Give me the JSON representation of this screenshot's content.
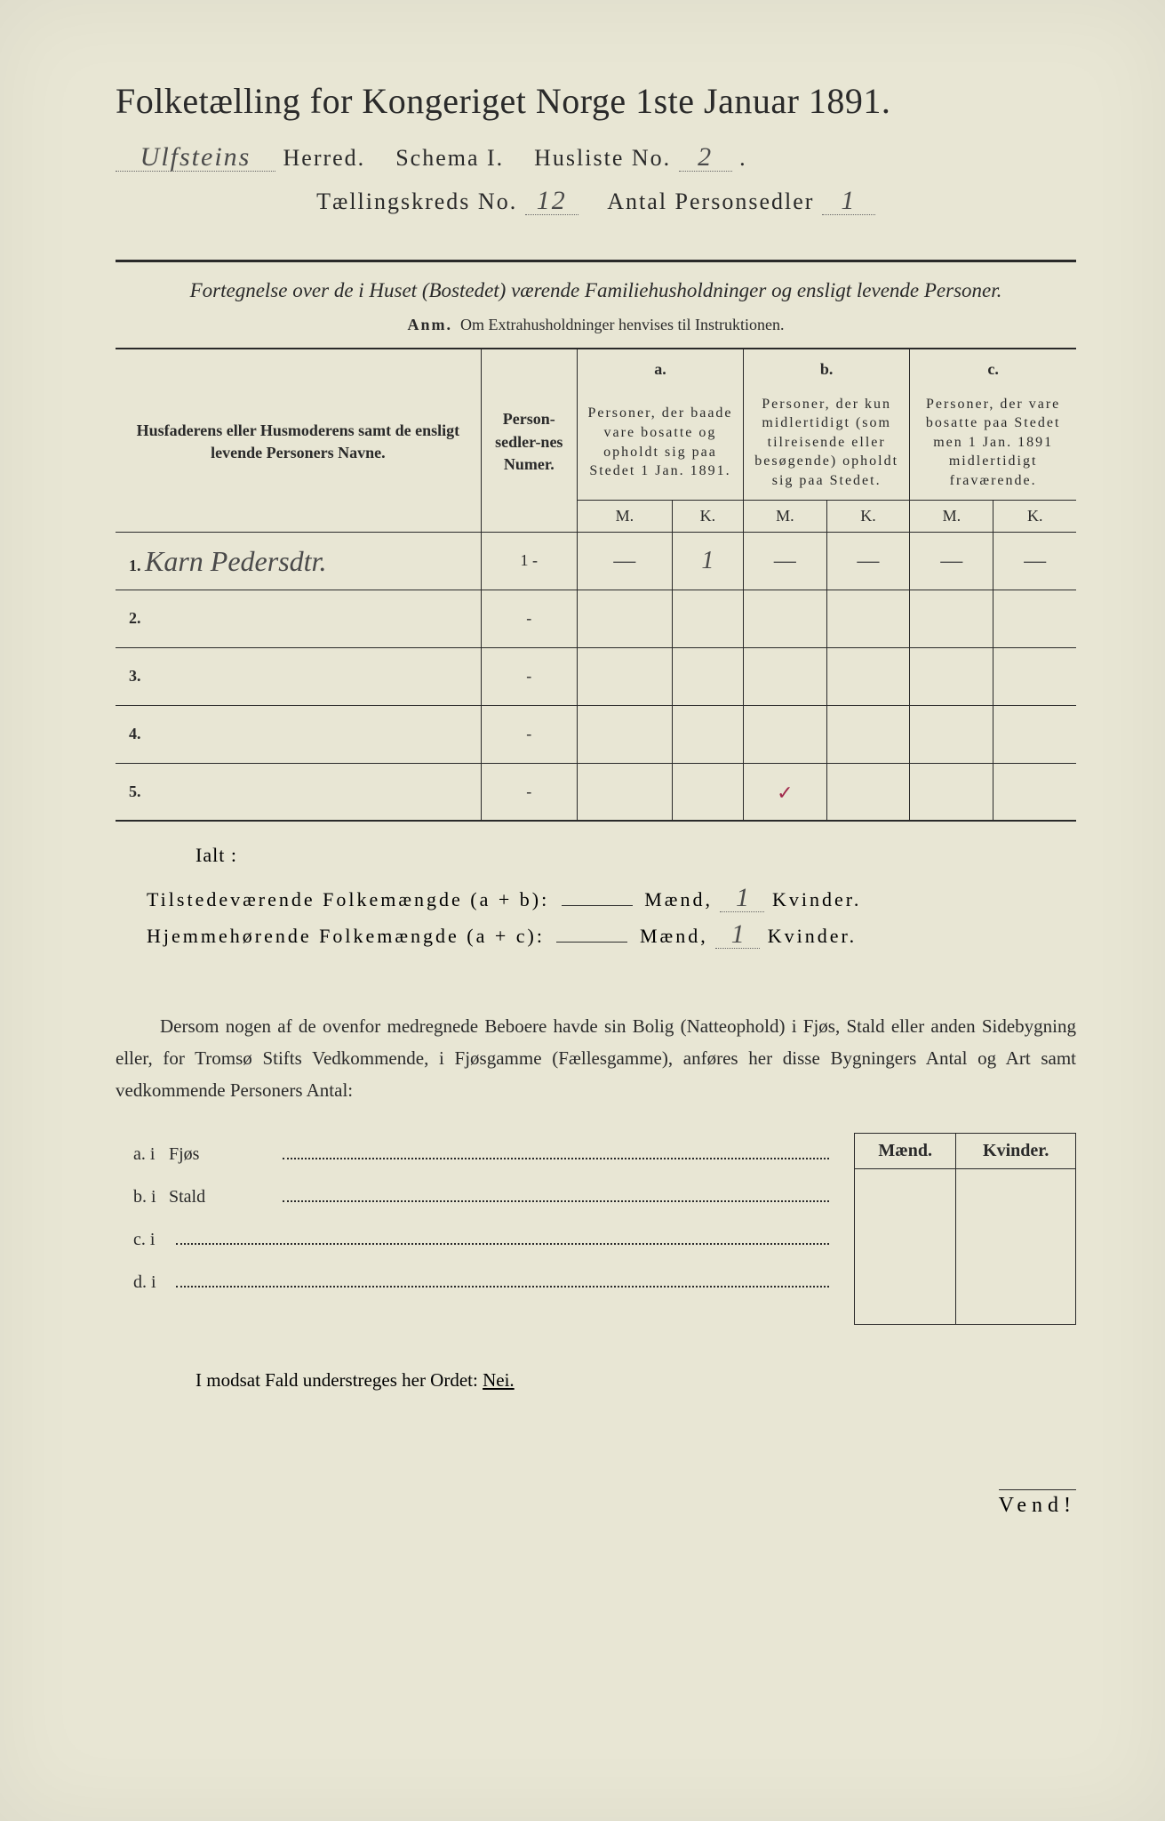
{
  "title": "Folketælling for Kongeriget Norge 1ste Januar 1891.",
  "header": {
    "herred_value": "Ulfsteins",
    "herred_label": "Herred.",
    "schema_label": "Schema I.",
    "husliste_label": "Husliste No.",
    "husliste_value": "2",
    "kreds_label": "Tællingskreds No.",
    "kreds_value": "12",
    "antal_label": "Antal Personsedler",
    "antal_value": "1"
  },
  "subtitle": "Fortegnelse over de i Huset (Bostedet) værende Familiehusholdninger og ensligt levende Personer.",
  "anm_label": "Anm.",
  "anm_text": "Om Extrahusholdninger henvises til Instruktionen.",
  "table": {
    "col1": "Husfaderens eller Husmoderens samt de ensligt levende Personers Navne.",
    "col2": "Person-sedler-nes Numer.",
    "col_a_label": "a.",
    "col_a": "Personer, der baade vare bosatte og opholdt sig paa Stedet 1 Jan. 1891.",
    "col_b_label": "b.",
    "col_b": "Personer, der kun midlertidigt (som tilreisende eller besøgende) opholdt sig paa Stedet.",
    "col_c_label": "c.",
    "col_c": "Personer, der vare bosatte paa Stedet men 1 Jan. 1891 midlertidigt fraværende.",
    "M": "M.",
    "K": "K.",
    "rows": [
      {
        "n": "1.",
        "name": "Karn Pedersdtr.",
        "numer": "1 -",
        "aM": "—",
        "aK": "1",
        "bM": "—",
        "bK": "—",
        "cM": "—",
        "cK": "—"
      },
      {
        "n": "2.",
        "name": "",
        "numer": "-",
        "aM": "",
        "aK": "",
        "bM": "",
        "bK": "",
        "cM": "",
        "cK": ""
      },
      {
        "n": "3.",
        "name": "",
        "numer": "-",
        "aM": "",
        "aK": "",
        "bM": "",
        "bK": "",
        "cM": "",
        "cK": ""
      },
      {
        "n": "4.",
        "name": "",
        "numer": "-",
        "aM": "",
        "aK": "",
        "bM": "",
        "bK": "",
        "cM": "",
        "cK": ""
      },
      {
        "n": "5.",
        "name": "",
        "numer": "-",
        "aM": "",
        "aK": "",
        "bM": "",
        "bK": "",
        "cM": "",
        "cK": ""
      }
    ]
  },
  "ialt": "Ialt :",
  "summary": {
    "line1_label": "Tilstedeværende Folkemængde (a + b):",
    "line2_label": "Hjemmehørende Folkemængde (a + c):",
    "maend": "Mænd,",
    "kvinder": "Kvinder.",
    "v1_m": "",
    "v1_k": "1",
    "v2_m": "",
    "v2_k": "1"
  },
  "paragraph": "Dersom nogen af de ovenfor medregnede Beboere havde sin Bolig (Natteophold) i Fjøs, Stald eller anden Sidebygning eller, for Tromsø Stifts Vedkommende, i Fjøsgamme (Fællesgamme), anføres her disse Bygningers Antal og Art samt vedkommende Personers Antal:",
  "sublist": {
    "a": "a.  i",
    "a_type": "Fjøs",
    "b": "b.  i",
    "b_type": "Stald",
    "c": "c.  i",
    "d": "d.  i"
  },
  "mk": {
    "m": "Mænd.",
    "k": "Kvinder."
  },
  "modsat": "I modsat Fald understreges her Ordet:",
  "nei": "Nei.",
  "vend": "Vend!",
  "colors": {
    "paper": "#e8e6d4",
    "ink": "#2a2a2a",
    "handwriting": "#4a4a4a",
    "tick": "#a0284a"
  }
}
